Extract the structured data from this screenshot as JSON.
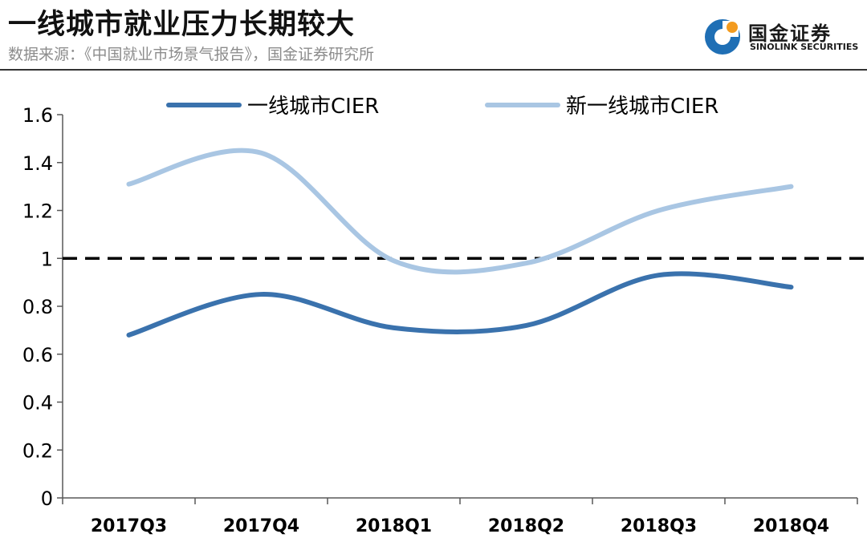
{
  "header": {
    "title": "一线城市就业压力长期较大",
    "source": "数据来源：《中国就业市场景气报告》，国金证券研究所"
  },
  "logo": {
    "name": "国金证券",
    "subtitle": "SINOLINK SECURITIES"
  },
  "colors": {
    "series_dark": "#3a72ad",
    "series_light": "#a9c6e3",
    "axis": "#595959",
    "reference": "#000000",
    "logo_blue": "#1f6fb5",
    "logo_orange": "#f39b1f"
  },
  "chart_data": {
    "type": "line",
    "title": "",
    "xlabel": "",
    "ylabel": "",
    "categories": [
      "2017Q3",
      "2017Q4",
      "2018Q1",
      "2018Q2",
      "2018Q3",
      "2018Q4"
    ],
    "ylim": [
      0,
      1.6
    ],
    "yticks": [
      "0",
      "0.2",
      "0.4",
      "0.6",
      "0.8",
      "1",
      "1.2",
      "1.4",
      "1.6"
    ],
    "legend_position": "top-center",
    "smooth": true,
    "grid": false,
    "series": [
      {
        "name": "一线城市CIER",
        "values": [
          0.68,
          0.85,
          0.71,
          0.72,
          0.93,
          0.88
        ]
      },
      {
        "name": "新一线城市CIER",
        "values": [
          1.31,
          1.44,
          0.99,
          0.98,
          1.2,
          1.3
        ]
      }
    ],
    "reference_line": {
      "value": 1,
      "style": "dashed"
    }
  }
}
